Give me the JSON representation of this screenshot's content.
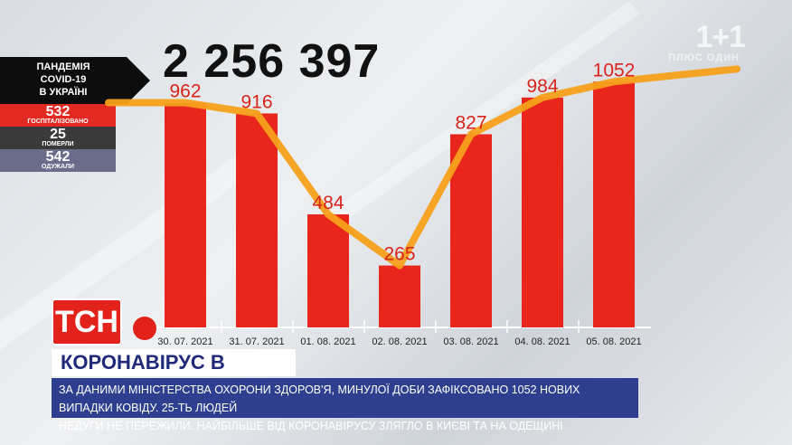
{
  "brand": {
    "logo_text": "1+1",
    "sub_text": "ПЛЮС ОДИН"
  },
  "total_cases": "2 256 397",
  "stats": {
    "title_lines": [
      "ПАНДЕМІЯ",
      "COVID-19",
      "В УКРАЇНІ"
    ],
    "hospitalized": {
      "value": "532",
      "label": "ГОСПІТАЛІЗОВАНО"
    },
    "died": {
      "value": "25",
      "label": "ПОМЕРЛИ"
    },
    "recovered": {
      "value": "542",
      "label": "ОДУЖАЛИ"
    }
  },
  "chart_data": {
    "type": "bar",
    "categories": [
      "30. 07. 2021",
      "31. 07. 2021",
      "01. 08. 2021",
      "02. 08. 2021",
      "03. 08. 2021",
      "04. 08. 2021",
      "05. 08. 2021"
    ],
    "values": [
      962,
      916,
      484,
      265,
      827,
      984,
      1052
    ],
    "value_labels": [
      "962",
      "916",
      "484",
      "265",
      "827",
      "984",
      "1052"
    ],
    "ylim": [
      0,
      1150
    ],
    "grid": false,
    "colors": {
      "bar": "#e8261c",
      "line": "#f5a01a",
      "label": "#d8251c"
    }
  },
  "channel": {
    "logo": "ТСН",
    "icon": "virus-icon"
  },
  "headline": "КОРОНАВІРУС В УКРАЇНІ",
  "ticker_lines": [
    "ЗА ДАНИМИ МІНІСТЕРСТВА ОХОРОНИ ЗДОРОВ'Я, МИНУЛОЇ ДОБИ ЗАФІКСОВАНО 1052 НОВИХ ВИПАДКИ КОВІДУ. 25-ТЬ ЛЮДЕЙ",
    "НЕДУГИ НЕ ПЕРЕЖИЛИ. НАЙБІЛЬШЕ ВІД КОРОНАВІРУСУ ЗЛЯГЛО В КИЄВІ ТА НА ОДЕЩИНІ"
  ]
}
